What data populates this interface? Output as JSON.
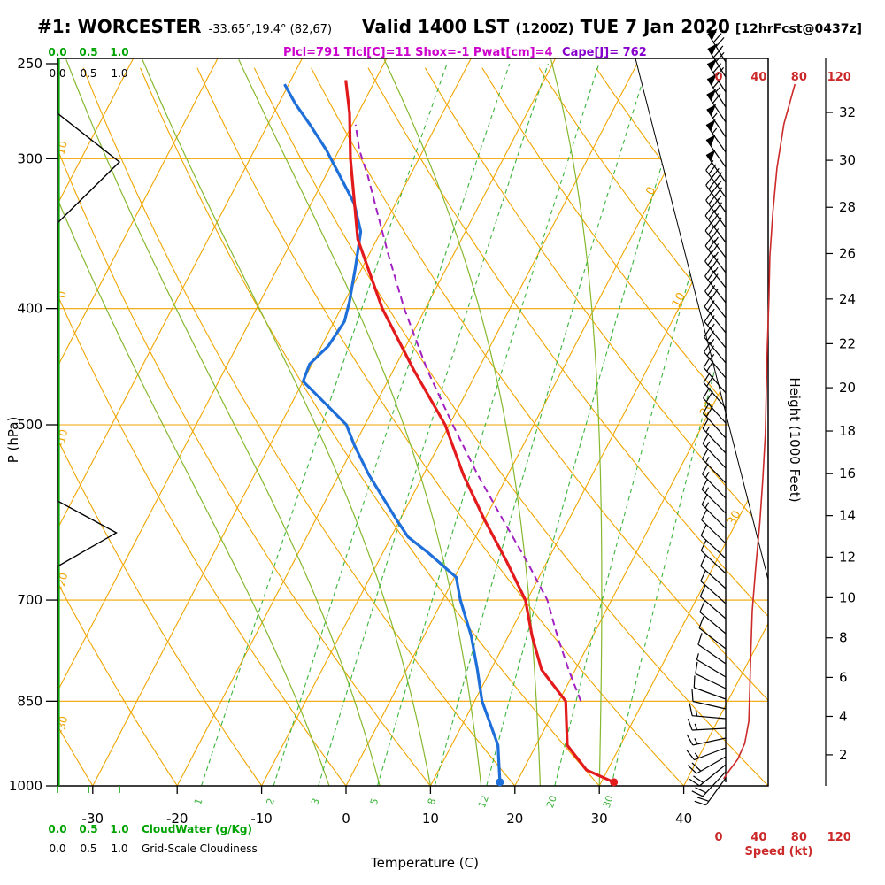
{
  "header": {
    "station_id": "#1: WORCESTER",
    "coords": "-33.65°,19.4° (82,67)",
    "valid_main": "Valid 1400 LST",
    "valid_z": "(1200Z)",
    "valid_date": "TUE 7 Jan 2020",
    "fcst_tag": "[12hrFcst@0437z]",
    "indices": "Plcl=791 Tlcl[C]=11 Shox=-1 Pwat[cm]=4",
    "cape": "Cape[J]= 762"
  },
  "axes": {
    "pressure_label": "P (hPa)",
    "temperature_label": "Temperature (C)",
    "height_label": "Height (1000 Feet)",
    "speed_label": "Speed (kt)",
    "cloudwater_label": "CloudWater (g/Kg)",
    "cloudiness_label": "Grid-Scale Cloudiness",
    "cloud_scale": [
      "0.0",
      "0.5",
      "1.0"
    ]
  },
  "colors": {
    "grid_orange": "#f0a500",
    "green_axis": "#00a300",
    "moist_green": "#86b82e",
    "mixing_green": "#3cb43c",
    "temp_red": "#e31a1c",
    "dew_blue": "#1e6fd9",
    "parcel_purple": "#a020c0",
    "speed_red": "#cc2a2a",
    "indices_magenta": "#cc00cc",
    "cape_purple": "#8800cc"
  },
  "chart_data": {
    "type": "line",
    "subtype": "skew-t log-p sounding",
    "title": "#1: WORCESTER Valid 1400 LST (1200Z) TUE 7 Jan 2020",
    "pressure_axis_hpa": [
      250,
      300,
      400,
      500,
      700,
      850,
      1000
    ],
    "temp_axis_c": [
      -30,
      -20,
      -10,
      0,
      10,
      20,
      30,
      40
    ],
    "height_axis_kft": [
      2,
      4,
      6,
      8,
      10,
      12,
      14,
      16,
      18,
      20,
      22,
      24,
      26,
      28,
      30,
      32
    ],
    "speed_axis_kt": [
      0,
      40,
      80,
      120
    ],
    "isotherm_labels_c": [
      0,
      10,
      20,
      30
    ],
    "dry_adiabat_labels_c": [
      10,
      0,
      -10,
      -20,
      -30
    ],
    "mixing_ratio_g_per_kg": [
      1,
      2,
      3,
      5,
      8,
      12,
      20,
      30
    ],
    "moist_adiabat_surface_temps_c": [
      -2,
      4,
      10,
      16,
      23,
      30
    ],
    "temperature_profile_p_t": [
      [
        993,
        31.5
      ],
      [
        970,
        27.5
      ],
      [
        925,
        23.7
      ],
      [
        850,
        20.8
      ],
      [
        800,
        16.0
      ],
      [
        750,
        12.8
      ],
      [
        700,
        9.8
      ],
      [
        650,
        5.2
      ],
      [
        600,
        0.0
      ],
      [
        550,
        -5.3
      ],
      [
        500,
        -10.5
      ],
      [
        450,
        -17.6
      ],
      [
        400,
        -25.1
      ],
      [
        350,
        -32.3
      ],
      [
        300,
        -38.1
      ],
      [
        275,
        -41.0
      ],
      [
        258,
        -43.5
      ]
    ],
    "dewpoint_profile_p_t": [
      [
        993,
        18.0
      ],
      [
        960,
        16.8
      ],
      [
        925,
        15.5
      ],
      [
        850,
        10.9
      ],
      [
        800,
        8.4
      ],
      [
        750,
        5.6
      ],
      [
        700,
        2.1
      ],
      [
        670,
        0.2
      ],
      [
        640,
        -4.5
      ],
      [
        620,
        -8.0
      ],
      [
        600,
        -10.4
      ],
      [
        570,
        -14.0
      ],
      [
        550,
        -16.5
      ],
      [
        520,
        -20.0
      ],
      [
        500,
        -22.2
      ],
      [
        480,
        -26.0
      ],
      [
        460,
        -30.0
      ],
      [
        445,
        -30.3
      ],
      [
        430,
        -29.2
      ],
      [
        410,
        -28.8
      ],
      [
        395,
        -29.4
      ],
      [
        370,
        -30.8
      ],
      [
        345,
        -32.4
      ],
      [
        327,
        -34.9
      ],
      [
        311,
        -38.1
      ],
      [
        295,
        -41.5
      ],
      [
        281,
        -45.0
      ],
      [
        270,
        -48.0
      ],
      [
        260,
        -50.5
      ]
    ],
    "parcel_profile_p_t": [
      [
        850,
        22.6
      ],
      [
        800,
        19.2
      ],
      [
        750,
        15.8
      ],
      [
        700,
        12.4
      ],
      [
        650,
        7.6
      ],
      [
        600,
        2.2
      ],
      [
        550,
        -3.6
      ],
      [
        500,
        -9.6
      ],
      [
        450,
        -16.0
      ],
      [
        400,
        -22.5
      ],
      [
        360,
        -27.8
      ],
      [
        330,
        -32.0
      ],
      [
        310,
        -35.0
      ],
      [
        295,
        -37.6
      ],
      [
        281,
        -39.6
      ]
    ],
    "wind_barbs_y_kt_ang": [
      [
        70,
        75,
        -32
      ],
      [
        87,
        70,
        -32
      ],
      [
        104,
        70,
        -33
      ],
      [
        121,
        65,
        -33
      ],
      [
        138,
        60,
        -34
      ],
      [
        155,
        55,
        -34
      ],
      [
        172,
        55,
        -35
      ],
      [
        189,
        50,
        -35
      ],
      [
        206,
        50,
        -35
      ],
      [
        223,
        45,
        -36
      ],
      [
        240,
        45,
        -36
      ],
      [
        257,
        40,
        -36
      ],
      [
        274,
        40,
        -37
      ],
      [
        291,
        35,
        -37
      ],
      [
        308,
        35,
        -37
      ],
      [
        325,
        35,
        -38
      ],
      [
        342,
        30,
        -38
      ],
      [
        359,
        30,
        -38
      ],
      [
        376,
        25,
        -39
      ],
      [
        393,
        25,
        -39
      ],
      [
        410,
        25,
        -40
      ],
      [
        427,
        25,
        -40
      ],
      [
        444,
        20,
        -41
      ],
      [
        461,
        20,
        -41
      ],
      [
        478,
        20,
        -42
      ],
      [
        495,
        20,
        -42
      ],
      [
        512,
        15,
        -43
      ],
      [
        529,
        15,
        -43
      ],
      [
        546,
        15,
        -44
      ],
      [
        563,
        15,
        -44
      ],
      [
        580,
        15,
        -45
      ],
      [
        597,
        15,
        -45
      ],
      [
        614,
        10,
        -46
      ],
      [
        631,
        10,
        -47
      ],
      [
        648,
        10,
        -47
      ],
      [
        665,
        10,
        -48
      ],
      [
        682,
        10,
        -48
      ],
      [
        699,
        10,
        -49
      ],
      [
        716,
        10,
        -50
      ],
      [
        733,
        10,
        -52
      ],
      [
        750,
        10,
        -55
      ],
      [
        765,
        5,
        -59
      ],
      [
        778,
        10,
        -64
      ],
      [
        790,
        10,
        -70
      ],
      [
        801,
        10,
        -77
      ],
      [
        812,
        15,
        -85
      ],
      [
        823,
        15,
        -93
      ],
      [
        834,
        15,
        -102
      ],
      [
        845,
        15,
        -111
      ],
      [
        855,
        20,
        -120
      ],
      [
        864,
        20,
        -129
      ],
      [
        872,
        20,
        -137
      ],
      [
        879,
        20,
        -144
      ]
    ],
    "wind_speed_profile_y_kt": [
      [
        95,
        76
      ],
      [
        140,
        65
      ],
      [
        190,
        58
      ],
      [
        240,
        54
      ],
      [
        290,
        51
      ],
      [
        340,
        50
      ],
      [
        390,
        48.5
      ],
      [
        440,
        47.5
      ],
      [
        490,
        46.5
      ],
      [
        540,
        44
      ],
      [
        590,
        41
      ],
      [
        640,
        37
      ],
      [
        690,
        33.5
      ],
      [
        740,
        32
      ],
      [
        780,
        31
      ],
      [
        815,
        30
      ],
      [
        840,
        26
      ],
      [
        858,
        19
      ],
      [
        870,
        11
      ],
      [
        880,
        5
      ]
    ],
    "cloud_fraction_profile_y_frac": [
      [
        66,
        0
      ],
      [
        128,
        0
      ],
      [
        183,
        1
      ],
      [
        252,
        0
      ],
      [
        566,
        0
      ],
      [
        602,
        0.95
      ],
      [
        640,
        0
      ],
      [
        888,
        0
      ]
    ]
  }
}
